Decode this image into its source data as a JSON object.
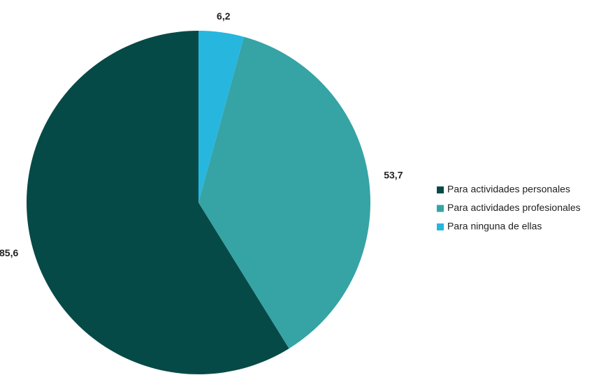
{
  "chart_data": {
    "type": "pie",
    "categories": [
      "Para actividades personales",
      "Para actividades profesionales",
      "Para ninguna de ellas"
    ],
    "values": [
      85.6,
      53.7,
      6.2
    ],
    "value_labels": [
      "85,6",
      "53,7",
      "6,2"
    ],
    "colors": [
      "#064a47",
      "#36a3a5",
      "#27b6de"
    ],
    "legend": "right"
  }
}
